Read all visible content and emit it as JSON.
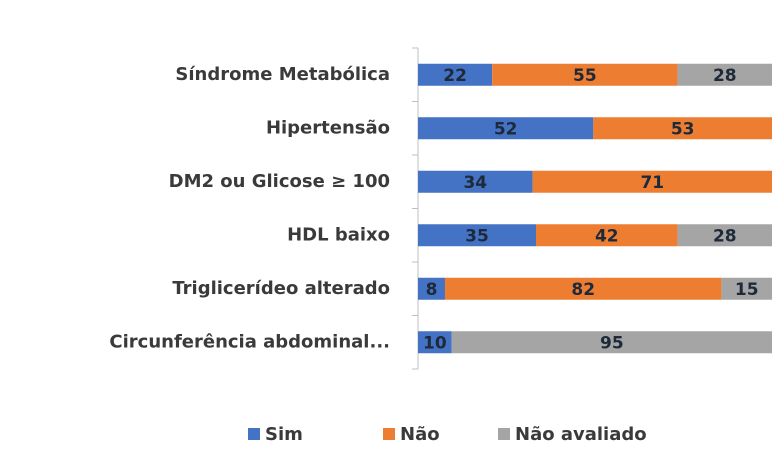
{
  "chart_data": {
    "type": "stacked-barh",
    "categories": [
      "Síndrome Metabólica",
      "Hipertensão",
      "DM2 ou Glicose ≥ 100",
      "HDL baixo",
      "Triglicerídeo alterado",
      "Circunferência abdominal..."
    ],
    "series": [
      {
        "name": "Sim",
        "color": "#4472c4",
        "values": [
          22,
          52,
          34,
          35,
          8,
          10
        ]
      },
      {
        "name": "Não",
        "color": "#ed7d31",
        "values": [
          55,
          53,
          71,
          42,
          82,
          null
        ]
      },
      {
        "name": "Não avaliado",
        "color": "#a5a5a5",
        "values": [
          28,
          null,
          null,
          28,
          15,
          95
        ]
      }
    ],
    "xlim": [
      0,
      105
    ]
  }
}
